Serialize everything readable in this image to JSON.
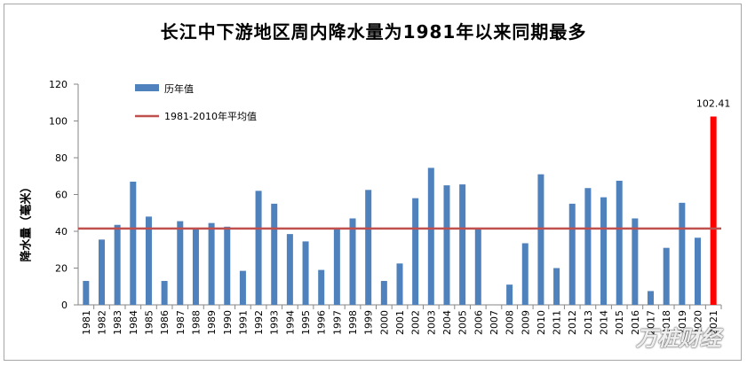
{
  "chart_data": {
    "type": "bar",
    "title": "长江中下游地区周内降水量为1981年以来同期最多",
    "ylabel": "降水量（毫米）",
    "xlabel": "",
    "ylim": [
      0,
      120
    ],
    "yticks": [
      "0",
      "20",
      "40",
      "60",
      "80",
      "100",
      "120"
    ],
    "categories": [
      "1981",
      "1982",
      "1983",
      "1984",
      "1985",
      "1986",
      "1987",
      "1988",
      "1989",
      "1990",
      "1991",
      "1992",
      "1993",
      "1994",
      "1995",
      "1996",
      "1997",
      "1998",
      "1999",
      "2000",
      "2001",
      "2002",
      "2003",
      "2004",
      "2005",
      "2006",
      "2007",
      "2008",
      "2009",
      "2010",
      "2011",
      "2012",
      "2013",
      "2014",
      "2015",
      "2016",
      "2017",
      "2018",
      "2019",
      "2020",
      "2021"
    ],
    "series": [
      {
        "name": "历年值",
        "color": "#4f81bd",
        "highlight_color": "#ff0000",
        "values": [
          13,
          35.5,
          43.5,
          67,
          48,
          13,
          45.5,
          41,
          44.5,
          42.5,
          18.5,
          62,
          55,
          38.5,
          34.5,
          19,
          41,
          47,
          62.5,
          13,
          22.5,
          58,
          74.5,
          65,
          65.5,
          41,
          0,
          11,
          33.5,
          71,
          20,
          55,
          63.5,
          58.5,
          67.5,
          47,
          7.5,
          31,
          55.5,
          36.5,
          102.41
        ]
      },
      {
        "name": "1981-2010年平均值",
        "color": "#c0504d",
        "value": 41.5
      }
    ],
    "annotations": [
      {
        "text": "102.41",
        "category": "2021"
      }
    ],
    "legend": [
      "历年值",
      "1981-2010年平均值"
    ],
    "legend_position": "top-left",
    "grid": false
  },
  "watermark": "万桩财经"
}
